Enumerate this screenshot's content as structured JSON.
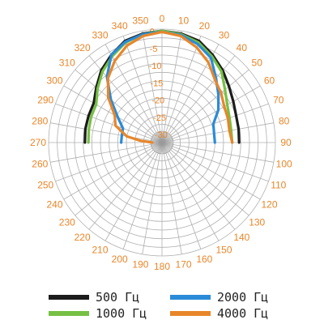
{
  "chart_data": {
    "type": "polar-line",
    "title": "",
    "angle_labels": [
      "0",
      "10",
      "20",
      "30",
      "40",
      "50",
      "60",
      "70",
      "80",
      "90",
      "100",
      "110",
      "120",
      "130",
      "140",
      "150",
      "160",
      "170",
      "180",
      "190",
      "200",
      "210",
      "220",
      "230",
      "240",
      "250",
      "260",
      "270",
      "280",
      "290",
      "300",
      "310",
      "320",
      "330",
      "340",
      "350"
    ],
    "radial_labels": [
      "0",
      "-5",
      "-10",
      "-15",
      "-20",
      "-25",
      "-30"
    ],
    "rlim": [
      -30,
      0
    ],
    "angle_step_deg": 10,
    "grid": true,
    "legend_position": "bottom",
    "series": [
      {
        "name": "500 Гц",
        "color": "#1c1c1c",
        "points": [
          [
            270,
            -10.5
          ],
          [
            280,
            -10.3
          ],
          [
            290,
            -10.2
          ],
          [
            300,
            -10.0
          ],
          [
            310,
            -8.0
          ],
          [
            320,
            -5.5
          ],
          [
            330,
            -3.5
          ],
          [
            340,
            -1.5
          ],
          [
            350,
            -0.8
          ],
          [
            0,
            -0.5
          ],
          [
            10,
            -0.8
          ],
          [
            20,
            -1.5
          ],
          [
            30,
            -3.5
          ],
          [
            40,
            -5.5
          ],
          [
            50,
            -7.5
          ],
          [
            60,
            -9.0
          ],
          [
            70,
            -10.0
          ],
          [
            80,
            -10.3
          ],
          [
            90,
            -10.5
          ]
        ]
      },
      {
        "name": "1000 Гц",
        "color": "#76c043",
        "points": [
          [
            270,
            -11.5
          ],
          [
            280,
            -11.3
          ],
          [
            290,
            -11.0
          ],
          [
            300,
            -10.8
          ],
          [
            310,
            -8.5
          ],
          [
            320,
            -6.0
          ],
          [
            330,
            -4.0
          ],
          [
            340,
            -2.0
          ],
          [
            350,
            -1.0
          ],
          [
            0,
            -0.5
          ],
          [
            10,
            -1.0
          ],
          [
            20,
            -2.0
          ],
          [
            30,
            -4.0
          ],
          [
            40,
            -6.0
          ],
          [
            50,
            -9.0
          ],
          [
            60,
            -11.0
          ],
          [
            70,
            -12.0
          ],
          [
            80,
            -12.5
          ],
          [
            90,
            -12.5
          ]
        ]
      },
      {
        "name": "2000 Гц",
        "color": "#2b8bd8",
        "points": [
          [
            270,
            -21.0
          ],
          [
            280,
            -21.0
          ],
          [
            290,
            -20.8
          ],
          [
            300,
            -18.0
          ],
          [
            310,
            -13.5
          ],
          [
            320,
            -8.0
          ],
          [
            330,
            -3.5
          ],
          [
            340,
            -1.8
          ],
          [
            350,
            -1.0
          ],
          [
            0,
            -0.8
          ],
          [
            10,
            -1.2
          ],
          [
            20,
            -2.5
          ],
          [
            30,
            -4.5
          ],
          [
            40,
            -8.5
          ],
          [
            50,
            -11.5
          ],
          [
            60,
            -14.0
          ],
          [
            70,
            -17.0
          ],
          [
            80,
            -17.5
          ],
          [
            90,
            -17.5
          ]
        ]
      },
      {
        "name": "4000 Гц",
        "color": "#e8862a",
        "points": [
          [
            270,
            -30.0
          ],
          [
            275,
            -26.5
          ],
          [
            280,
            -22.5
          ],
          [
            290,
            -18.5
          ],
          [
            300,
            -17.0
          ],
          [
            310,
            -12.5
          ],
          [
            320,
            -8.5
          ],
          [
            330,
            -5.5
          ],
          [
            340,
            -3.0
          ],
          [
            350,
            -1.5
          ],
          [
            0,
            -0.8
          ],
          [
            10,
            -1.5
          ],
          [
            20,
            -3.5
          ],
          [
            30,
            -6.0
          ],
          [
            40,
            -9.0
          ],
          [
            50,
            -10.5
          ],
          [
            60,
            -12.0
          ],
          [
            70,
            -12.5
          ],
          [
            80,
            -13.0
          ],
          [
            90,
            -12.5
          ]
        ]
      }
    ]
  },
  "legend": [
    {
      "label": "500 Гц",
      "color": "#1c1c1c"
    },
    {
      "label": "2000 Гц",
      "color": "#2b8bd8"
    },
    {
      "label": "1000 Гц",
      "color": "#76c043"
    },
    {
      "label": "4000 Гц",
      "color": "#e8862a"
    }
  ]
}
